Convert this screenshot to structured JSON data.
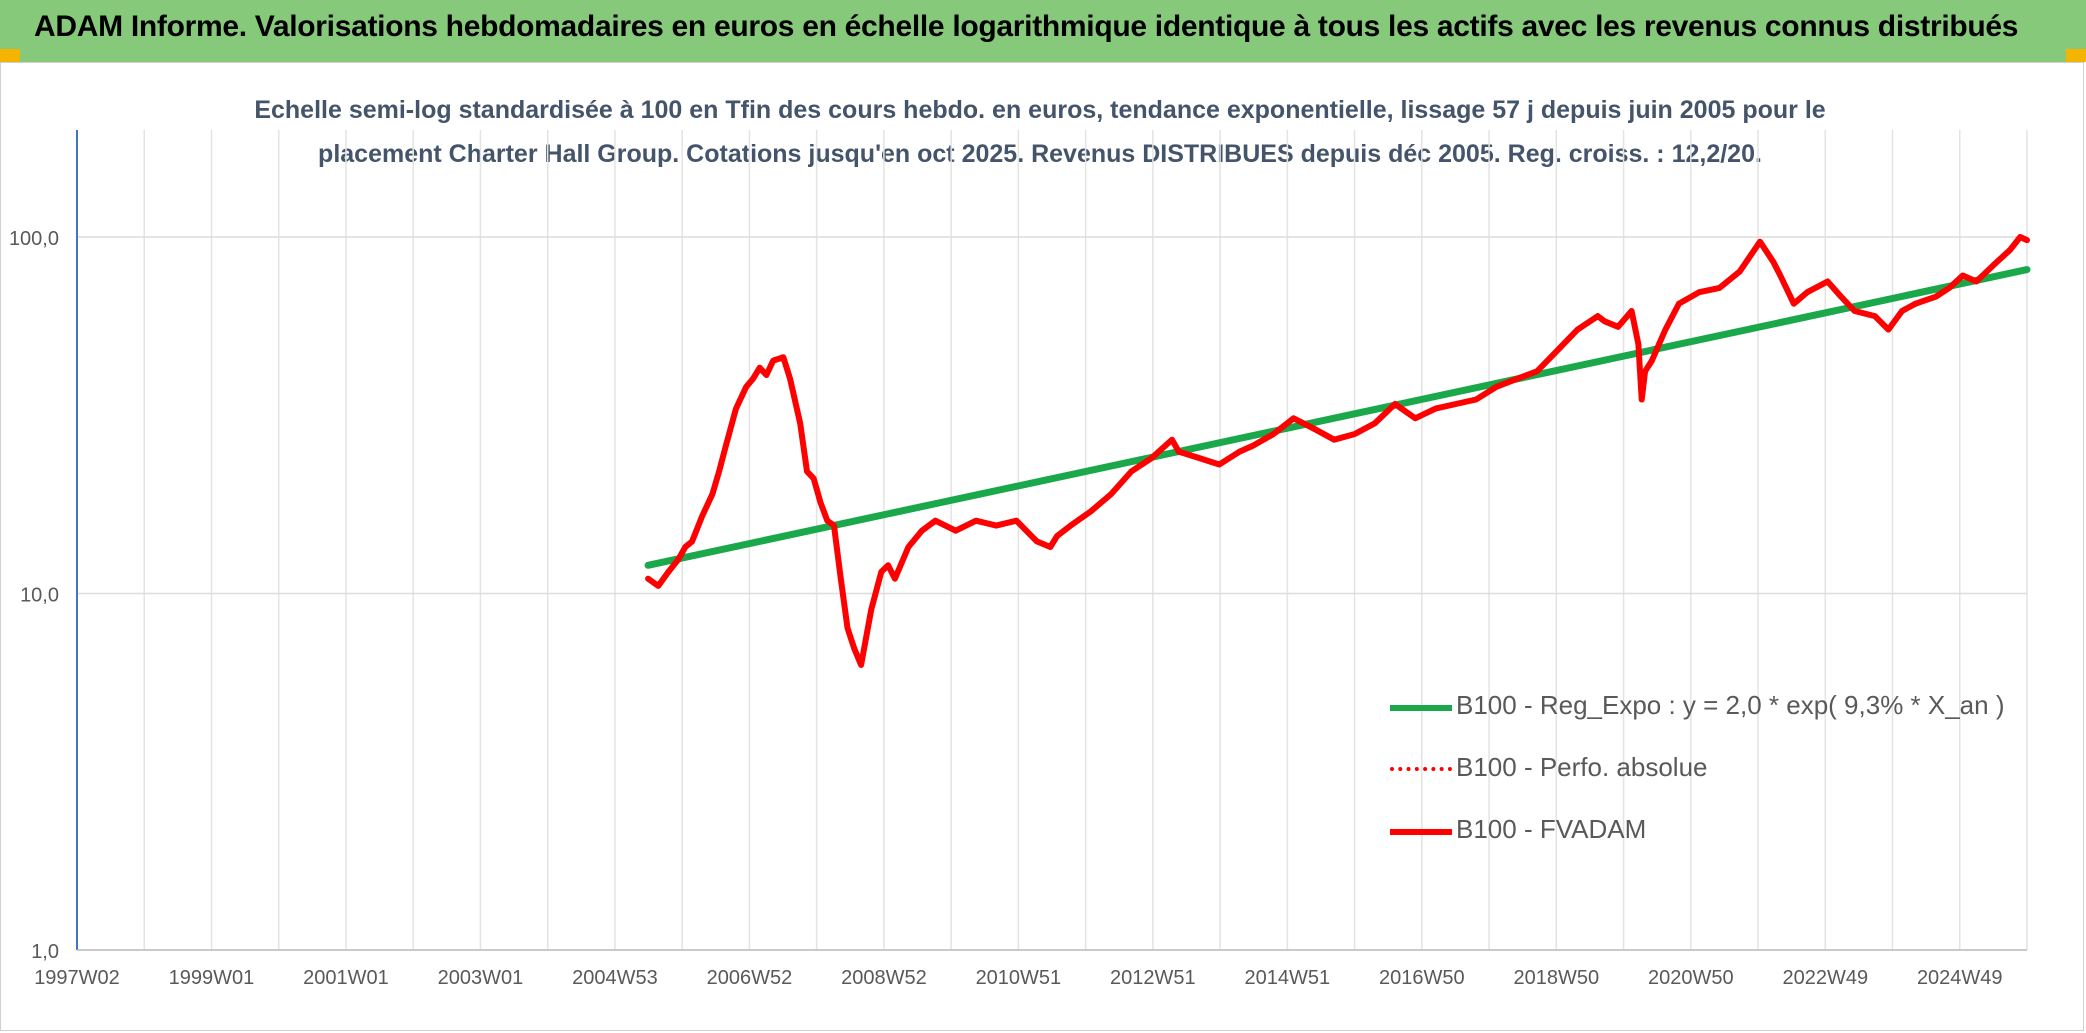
{
  "header": {
    "title": "ADAM Informe. Valorisations hebdomadaires en euros en échelle logarithmique identique à tous les actifs avec les revenus connus distribués"
  },
  "chart_data": {
    "type": "line",
    "title_line1": "Echelle semi-log standardisée à 100 en Tfin des cours hebdo. en euros, tendance exponentielle, lissage 57 j depuis juin 2005 pour le",
    "title_line2": "placement Charter Hall Group. Cotations jusqu'en oct 2025. Revenus DISTRIBUES depuis déc 2005. Reg. croiss. : 12,2/20.",
    "y_scale": "log",
    "ylim": [
      1,
      100
    ],
    "y_ticks": [
      "100,0",
      "10,0",
      "1,0"
    ],
    "x_range": [
      1997.0,
      2025.85
    ],
    "x_tick_labels": [
      "1997W02",
      "1999W01",
      "2001W01",
      "2003W01",
      "2004W53",
      "2006W52",
      "2008W52",
      "2010W51",
      "2012W51",
      "2014W51",
      "2016W50",
      "2018W50",
      "2020W50",
      "2022W49",
      "2024W49"
    ],
    "grid": true,
    "legend_position": "bottom-right",
    "series": [
      {
        "name": "B100 - Reg_Expo : y = 2,0 * exp( 9,3% *  X_an )",
        "color": "#1aa84a",
        "style": "solid",
        "x": [
          2005.45,
          2025.85
        ],
        "y": [
          12.0,
          81.0
        ]
      },
      {
        "name": "B100 - Perfo. absolue",
        "color": "#ff0000",
        "style": "dotted",
        "x": [],
        "y": []
      },
      {
        "name": "B100 - FVADAM",
        "color": "#ff0000",
        "style": "solid",
        "x": [
          2005.45,
          2005.6,
          2005.75,
          2005.9,
          2006.0,
          2006.1,
          2006.25,
          2006.4,
          2006.5,
          2006.6,
          2006.75,
          2006.9,
          2007.0,
          2007.1,
          2007.2,
          2007.3,
          2007.45,
          2007.55,
          2007.7,
          2007.8,
          2007.9,
          2008.0,
          2008.1,
          2008.2,
          2008.3,
          2008.4,
          2008.5,
          2008.6,
          2008.75,
          2008.9,
          2009.0,
          2009.1,
          2009.3,
          2009.5,
          2009.7,
          2010.0,
          2010.3,
          2010.6,
          2010.9,
          2011.2,
          2011.4,
          2011.5,
          2011.7,
          2012.0,
          2012.3,
          2012.6,
          2012.9,
          2013.2,
          2013.3,
          2013.6,
          2013.9,
          2014.2,
          2014.4,
          2014.7,
          2015.0,
          2015.3,
          2015.6,
          2015.9,
          2016.2,
          2016.5,
          2016.8,
          2017.1,
          2017.4,
          2017.7,
          2018.0,
          2018.3,
          2018.6,
          2018.9,
          2019.2,
          2019.5,
          2019.6,
          2019.8,
          2020.0,
          2020.1,
          2020.15,
          2020.2,
          2020.3,
          2020.5,
          2020.7,
          2021.0,
          2021.3,
          2021.6,
          2021.9,
          2022.1,
          2022.2,
          2022.4,
          2022.6,
          2022.9,
          2023.1,
          2023.3,
          2023.6,
          2023.8,
          2024.0,
          2024.2,
          2024.5,
          2024.7,
          2024.9,
          2025.1,
          2025.4,
          2025.6,
          2025.75,
          2025.85
        ],
        "y": [
          11.0,
          10.5,
          11.5,
          12.5,
          13.5,
          14.0,
          16.5,
          19.0,
          22.0,
          26.0,
          33.0,
          38.0,
          40.0,
          43.0,
          41.0,
          45.0,
          46.0,
          40.0,
          30.0,
          22.0,
          21.0,
          18.0,
          16.0,
          15.5,
          11.0,
          8.0,
          7.0,
          6.3,
          9.0,
          11.5,
          12.0,
          11.0,
          13.5,
          15.0,
          16.0,
          15.0,
          16.0,
          15.5,
          16.0,
          14.0,
          13.5,
          14.5,
          15.5,
          17.0,
          19.0,
          22.0,
          24.0,
          27.0,
          25.0,
          24.0,
          23.0,
          25.0,
          26.0,
          28.0,
          31.0,
          29.0,
          27.0,
          28.0,
          30.0,
          34.0,
          31.0,
          33.0,
          34.0,
          35.0,
          38.0,
          40.0,
          42.0,
          48.0,
          55.0,
          60.0,
          58.0,
          56.0,
          62.0,
          50.0,
          35.0,
          42.0,
          45.0,
          55.0,
          65.0,
          70.0,
          72.0,
          80.0,
          97.0,
          85.0,
          78.0,
          65.0,
          70.0,
          75.0,
          68.0,
          62.0,
          60.0,
          55.0,
          62.0,
          65.0,
          68.0,
          72.0,
          78.0,
          75.0,
          85.0,
          92.0,
          100.0,
          98.0
        ]
      }
    ]
  }
}
